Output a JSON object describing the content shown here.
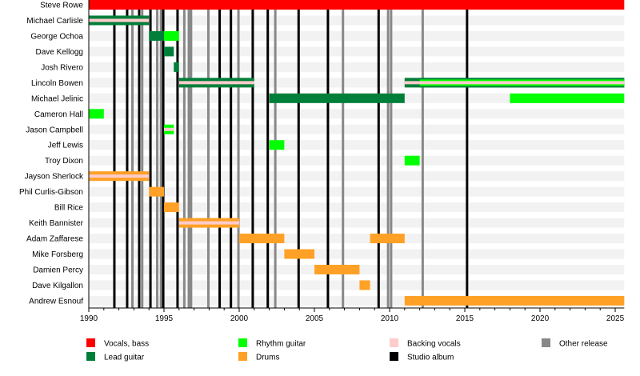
{
  "chart_data": {
    "type": "timeline",
    "xlim": [
      1990,
      2025.6
    ],
    "x_ticks": [
      "1990",
      "1995",
      "2000",
      "2005",
      "2010",
      "2015",
      "2020",
      "2025"
    ],
    "colors": {
      "Vocals, bass": "#FF0000",
      "Lead guitar": "#007F3A",
      "Rhythm guitar": "#00FF00",
      "Backing vocals": "#FFCCCC",
      "Drums": "#FFA126",
      "Studio album": "#000000",
      "Other release": "#888888"
    },
    "legend": [
      {
        "label": "Vocals, bass",
        "key": "Vocals, bass"
      },
      {
        "label": "Lead guitar",
        "key": "Lead guitar"
      },
      {
        "label": "Rhythm guitar",
        "key": "Rhythm guitar"
      },
      {
        "label": "Drums",
        "key": "Drums"
      },
      {
        "label": "Backing vocals",
        "key": "Backing vocals"
      },
      {
        "label": "Studio album",
        "key": "Studio album"
      },
      {
        "label": "Other release",
        "key": "Other release"
      }
    ],
    "studio_albums": [
      1991.7,
      1992.55,
      1993.35,
      1994.1,
      1994.95,
      1995.9,
      1998.7,
      1999.45,
      2000.9,
      2001.9,
      2003.95,
      2005.9,
      2009.27,
      2015.15
    ],
    "other_releases": [
      1992.9,
      1993.55,
      1994.55,
      1994.8,
      1996.35,
      1996.65,
      1996.8,
      1997.95,
      1999.95,
      2002.4,
      2006.9,
      2009.9,
      2010.1,
      2012.2
    ],
    "members": [
      {
        "name": "Steve Rowe",
        "bars": [
          {
            "start": 1990,
            "end": "present",
            "roles": [
              "Vocals, bass"
            ]
          }
        ]
      },
      {
        "name": "Michael Carlisle",
        "bars": [
          {
            "start": 1990,
            "end": 1994,
            "roles": [
              "Lead guitar",
              "Backing vocals"
            ]
          }
        ]
      },
      {
        "name": "George Ochoa",
        "bars": [
          {
            "start": 1994,
            "end": 1995,
            "roles": [
              "Lead guitar"
            ]
          },
          {
            "start": 1995,
            "end": 1996,
            "roles": [
              "Rhythm guitar"
            ]
          }
        ]
      },
      {
        "name": "Dave Kellogg",
        "bars": [
          {
            "start": 1995,
            "end": 1995.65,
            "roles": [
              "Lead guitar"
            ]
          }
        ]
      },
      {
        "name": "Josh Rivero",
        "bars": [
          {
            "start": 1995.65,
            "end": 1996,
            "roles": [
              "Lead guitar"
            ]
          }
        ]
      },
      {
        "name": "Lincoln Bowen",
        "bars": [
          {
            "start": 1996,
            "end": 2001,
            "roles": [
              "Lead guitar",
              "Backing vocals"
            ]
          },
          {
            "start": 2011,
            "end": "present",
            "roles": [
              "Lead guitar",
              "Backing vocals"
            ]
          },
          {
            "start": 2012,
            "end": "present",
            "roles": [
              "Lead guitar",
              "Rhythm guitar",
              "Backing vocals"
            ]
          }
        ]
      },
      {
        "name": "Michael Jelinic",
        "bars": [
          {
            "start": 2002,
            "end": 2011,
            "roles": [
              "Lead guitar"
            ]
          },
          {
            "start": 2018,
            "end": "present",
            "roles": [
              "Rhythm guitar"
            ]
          }
        ]
      },
      {
        "name": "Cameron Hall",
        "bars": [
          {
            "start": 1990,
            "end": 1991,
            "roles": [
              "Rhythm guitar"
            ]
          }
        ]
      },
      {
        "name": "Jason Campbell",
        "bars": [
          {
            "start": 1995,
            "end": 1995.65,
            "roles": [
              "Rhythm guitar",
              "Backing vocals"
            ]
          }
        ]
      },
      {
        "name": "Jeff Lewis",
        "bars": [
          {
            "start": 2002,
            "end": 2003,
            "roles": [
              "Rhythm guitar"
            ]
          }
        ]
      },
      {
        "name": "Troy Dixon",
        "bars": [
          {
            "start": 2011,
            "end": 2012,
            "roles": [
              "Rhythm guitar"
            ]
          }
        ]
      },
      {
        "name": "Jayson Sherlock",
        "bars": [
          {
            "start": 1990,
            "end": 1994,
            "roles": [
              "Drums",
              "Backing vocals"
            ]
          }
        ]
      },
      {
        "name": "Phil Curlis-Gibson",
        "bars": [
          {
            "start": 1994,
            "end": 1995,
            "roles": [
              "Drums"
            ]
          }
        ]
      },
      {
        "name": "Bill Rice",
        "bars": [
          {
            "start": 1995,
            "end": 1996,
            "roles": [
              "Drums"
            ]
          }
        ]
      },
      {
        "name": "Keith Bannister",
        "bars": [
          {
            "start": 1996,
            "end": 2000,
            "roles": [
              "Drums",
              "Backing vocals"
            ]
          }
        ]
      },
      {
        "name": "Adam Zaffarese",
        "bars": [
          {
            "start": 2000,
            "end": 2003,
            "roles": [
              "Drums"
            ]
          },
          {
            "start": 2008.7,
            "end": 2011,
            "roles": [
              "Drums"
            ]
          }
        ]
      },
      {
        "name": "Mike Forsberg",
        "bars": [
          {
            "start": 2003,
            "end": 2005,
            "roles": [
              "Drums"
            ]
          }
        ]
      },
      {
        "name": "Damien Percy",
        "bars": [
          {
            "start": 2005,
            "end": 2008,
            "roles": [
              "Drums"
            ]
          }
        ]
      },
      {
        "name": "Dave Kilgallon",
        "bars": [
          {
            "start": 2008,
            "end": 2008.7,
            "roles": [
              "Drums"
            ]
          }
        ]
      },
      {
        "name": "Andrew Esnouf",
        "bars": [
          {
            "start": 2011,
            "end": "present",
            "roles": [
              "Drums"
            ]
          }
        ]
      }
    ]
  }
}
